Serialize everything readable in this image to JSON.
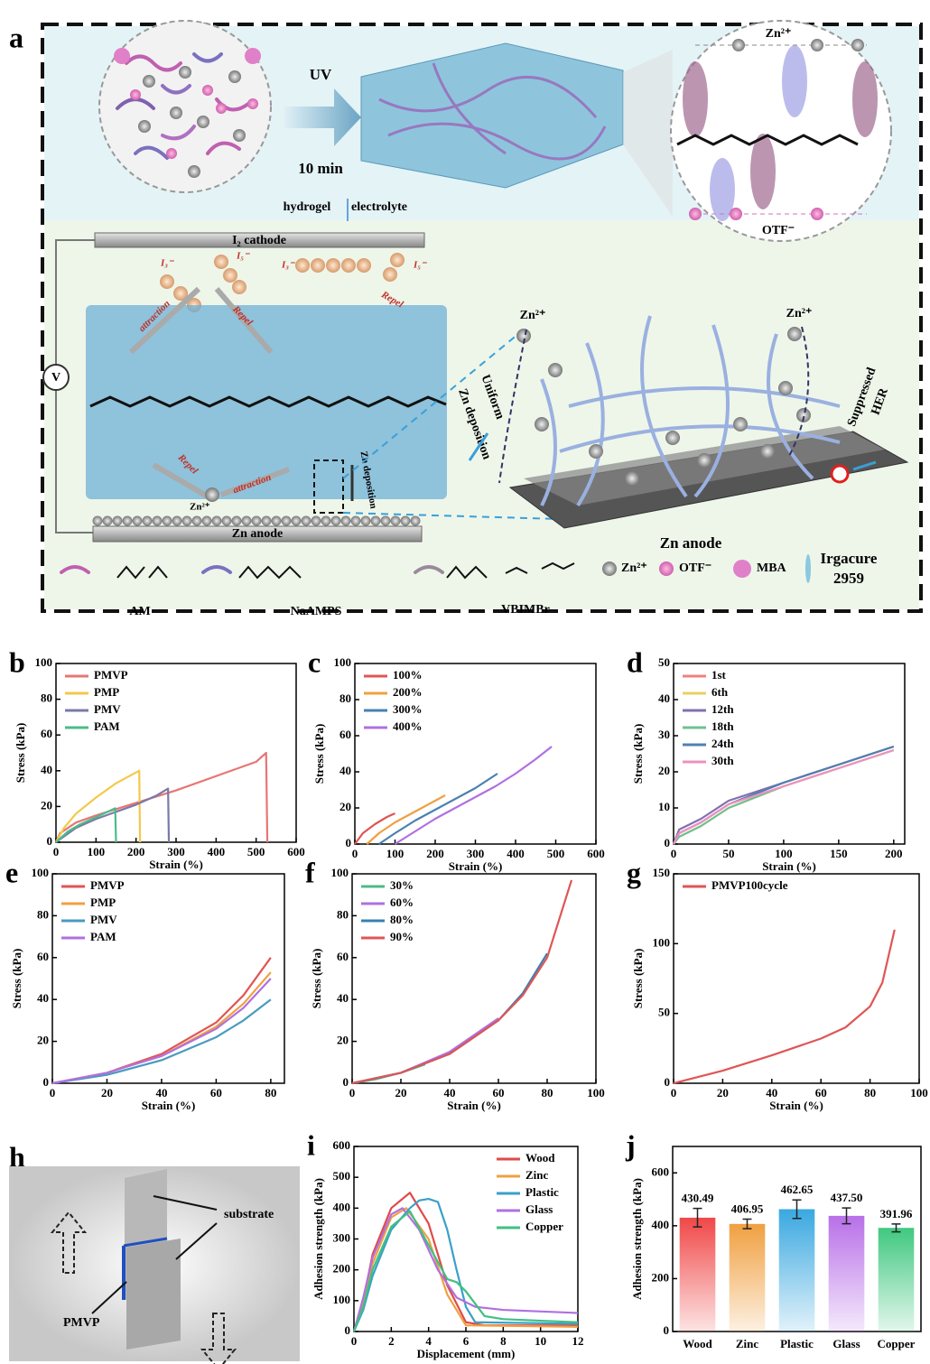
{
  "panel_a": {
    "label": "a",
    "uv": "UV",
    "time": "10 min",
    "hydrogel": "hydrogel",
    "electrolyte": "electrolyte",
    "inset_zn": "Zn²⁺",
    "inset_otf": "OTF⁻",
    "cathode": "I₂ cathode",
    "i3_1": "I₃⁻",
    "i5_1": "I₅⁻",
    "i3_2": "I₃⁻",
    "i5_2": "I₅⁻",
    "attraction_1": "attraction",
    "attraction_2": "attraction",
    "repel_1": "Repel",
    "repel_2": "Repel",
    "repel_3": "Repel",
    "voltmeter": "V",
    "zn_ion_bottom": "Zn²⁺",
    "zn_deposition": "Zn deposition",
    "anode": "Zn anode",
    "zn_ion_left": "Zn²⁺",
    "zn_ion_right": "Zn²⁺",
    "uniform": "Uniform",
    "zn_dep_right": "Zn deposition",
    "suppressed": "Suppressed",
    "her": "HER",
    "anode_right": "Zn anode",
    "legend": [
      "AM",
      "NaAMPS",
      "VBIMBr",
      "Zn²⁺",
      "OTF⁻",
      "MBA",
      "Irgacure",
      "2959"
    ]
  },
  "panel_h": {
    "label": "h",
    "substrate": "substrate",
    "pmvp": "PMVP"
  },
  "chart_data": [
    {
      "type": "line",
      "label": "b",
      "xlabel": "Strain (%)",
      "ylabel": "Stress (kPa)",
      "xlim": [
        0,
        600
      ],
      "ylim": [
        0,
        100
      ],
      "xticks": [
        0,
        100,
        200,
        300,
        400,
        500,
        600
      ],
      "yticks": [
        0,
        20,
        40,
        60,
        80,
        100
      ],
      "legend": "upper left",
      "series": [
        {
          "name": "PMVP",
          "color": "#e87575",
          "x": [
            0,
            10,
            50,
            100,
            200,
            300,
            400,
            500,
            525,
            528
          ],
          "values": [
            0,
            5,
            11,
            15,
            22,
            29,
            37,
            45,
            50,
            0
          ]
        },
        {
          "name": "PMP",
          "color": "#f5c84a",
          "x": [
            0,
            20,
            50,
            100,
            150,
            208,
            210
          ],
          "values": [
            0,
            8,
            16,
            25,
            33,
            40,
            0
          ]
        },
        {
          "name": "PMV",
          "color": "#7a7aa8",
          "x": [
            0,
            50,
            100,
            150,
            200,
            250,
            280,
            282
          ],
          "values": [
            0,
            8,
            13,
            17,
            21,
            26,
            30,
            0
          ]
        },
        {
          "name": "PAM",
          "color": "#4cbb8a",
          "x": [
            0,
            30,
            60,
            100,
            148,
            150
          ],
          "values": [
            0,
            6,
            10,
            14,
            19,
            0
          ]
        }
      ]
    },
    {
      "type": "line",
      "label": "c",
      "xlabel": "Strain (%)",
      "ylabel": "Stress (kPa)",
      "xlim": [
        0,
        600
      ],
      "ylim": [
        0,
        100
      ],
      "xticks": [
        0,
        100,
        200,
        300,
        400,
        500,
        600
      ],
      "yticks": [
        0,
        20,
        40,
        60,
        80,
        100
      ],
      "legend": "upper left",
      "series": [
        {
          "name": "100%",
          "color": "#e05555",
          "x": [
            0,
            20,
            50,
            80,
            100
          ],
          "values": [
            0,
            6,
            11,
            15,
            17
          ]
        },
        {
          "name": "200%",
          "color": "#f0a040",
          "x": [
            30,
            60,
            100,
            150,
            200,
            225
          ],
          "values": [
            0,
            6,
            12,
            18,
            24,
            27
          ]
        },
        {
          "name": "300%",
          "color": "#4a80b0",
          "x": [
            60,
            100,
            150,
            200,
            250,
            300,
            355
          ],
          "values": [
            0,
            6,
            13,
            19,
            25,
            31,
            39
          ]
        },
        {
          "name": "400%",
          "color": "#b070e0",
          "x": [
            100,
            150,
            200,
            250,
            300,
            350,
            400,
            450,
            490
          ],
          "values": [
            0,
            7,
            14,
            20,
            26,
            32,
            39,
            47,
            54
          ]
        }
      ]
    },
    {
      "type": "line",
      "label": "d",
      "xlabel": "Strain (%)",
      "ylabel": "Stress (kPa)",
      "xlim": [
        0,
        210
      ],
      "ylim": [
        0,
        50
      ],
      "xticks": [
        0,
        50,
        100,
        150,
        200
      ],
      "yticks": [
        0,
        10,
        20,
        30,
        40,
        50
      ],
      "legend": "upper left",
      "series": [
        {
          "name": "1st",
          "color": "#f08080",
          "x": [
            0,
            5,
            25,
            50,
            100,
            150,
            200
          ],
          "values": [
            0,
            3,
            6,
            11,
            17,
            22,
            27
          ]
        },
        {
          "name": "6th",
          "color": "#e8d060",
          "x": [
            0,
            5,
            25,
            50,
            100,
            150,
            200
          ],
          "values": [
            0,
            2,
            5,
            10,
            16,
            21,
            26
          ]
        },
        {
          "name": "12th",
          "color": "#8070b0",
          "x": [
            0,
            5,
            25,
            50,
            100,
            150,
            200
          ],
          "values": [
            0,
            4,
            7,
            12,
            17,
            22,
            27
          ]
        },
        {
          "name": "18th",
          "color": "#70c090",
          "x": [
            0,
            5,
            25,
            50,
            100,
            150,
            200
          ],
          "values": [
            0,
            2,
            5,
            10,
            16,
            21,
            26
          ]
        },
        {
          "name": "24th",
          "color": "#5080b0",
          "x": [
            0,
            5,
            25,
            50,
            100,
            150,
            200
          ],
          "values": [
            0,
            3,
            6,
            11,
            17,
            22,
            27
          ]
        },
        {
          "name": "30th",
          "color": "#f090c0",
          "x": [
            0,
            5,
            25,
            50,
            100,
            150,
            200
          ],
          "values": [
            0,
            3,
            6,
            11,
            16,
            21,
            26
          ]
        }
      ]
    },
    {
      "type": "line",
      "label": "e",
      "xlabel": "Strain (%)",
      "ylabel": "Stress (kPa)",
      "xlim": [
        0,
        85
      ],
      "ylim": [
        0,
        100
      ],
      "xticks": [
        0,
        20,
        40,
        60,
        80
      ],
      "yticks": [
        0,
        20,
        40,
        60,
        80,
        100
      ],
      "legend": "upper left",
      "series": [
        {
          "name": "PMVP",
          "color": "#e05555",
          "x": [
            0,
            20,
            40,
            60,
            70,
            80
          ],
          "values": [
            0,
            5,
            14,
            29,
            42,
            60
          ]
        },
        {
          "name": "PMP",
          "color": "#f0a040",
          "x": [
            0,
            20,
            40,
            60,
            70,
            80
          ],
          "values": [
            0,
            5,
            13,
            27,
            38,
            53
          ]
        },
        {
          "name": "PMV",
          "color": "#4a9ac0",
          "x": [
            0,
            20,
            40,
            60,
            70,
            80
          ],
          "values": [
            0,
            4,
            11,
            22,
            30,
            40
          ]
        },
        {
          "name": "PAM",
          "color": "#b070e0",
          "x": [
            0,
            20,
            40,
            60,
            70,
            80
          ],
          "values": [
            0,
            5,
            13,
            26,
            36,
            50
          ]
        }
      ]
    },
    {
      "type": "line",
      "label": "f",
      "xlabel": "Strain (%)",
      "ylabel": "Stress (kPa)",
      "xlim": [
        0,
        100
      ],
      "ylim": [
        0,
        100
      ],
      "xticks": [
        0,
        20,
        40,
        60,
        80,
        100
      ],
      "yticks": [
        0,
        20,
        40,
        60,
        80,
        100
      ],
      "legend": "upper left",
      "series": [
        {
          "name": "30%",
          "color": "#4cbb8a",
          "x": [
            0,
            10,
            20,
            30
          ],
          "values": [
            0,
            2,
            5,
            9
          ]
        },
        {
          "name": "60%",
          "color": "#b070e0",
          "x": [
            0,
            20,
            40,
            60
          ],
          "values": [
            0,
            5,
            15,
            31
          ]
        },
        {
          "name": "80%",
          "color": "#3a80b0",
          "x": [
            0,
            20,
            40,
            60,
            70,
            80
          ],
          "values": [
            0,
            5,
            14,
            30,
            43,
            62
          ]
        },
        {
          "name": "90%",
          "color": "#e05555",
          "x": [
            0,
            20,
            40,
            60,
            70,
            80,
            90
          ],
          "values": [
            0,
            5,
            14,
            30,
            42,
            60,
            97
          ]
        }
      ]
    },
    {
      "type": "line",
      "label": "g",
      "xlabel": "Strain (%)",
      "ylabel": "Stress (kPa)",
      "xlim": [
        0,
        100
      ],
      "ylim": [
        0,
        150
      ],
      "xticks": [
        0,
        20,
        40,
        60,
        80,
        100
      ],
      "yticks": [
        0,
        50,
        100,
        150
      ],
      "legend": "upper left",
      "series": [
        {
          "name": "PMVP100cycle",
          "color": "#e05555",
          "x": [
            0,
            20,
            40,
            60,
            70,
            80,
            85,
            90
          ],
          "values": [
            0,
            9,
            20,
            32,
            40,
            55,
            72,
            110
          ]
        }
      ]
    },
    {
      "type": "line",
      "label": "i",
      "xlabel": "Displacement (mm)",
      "ylabel": "Adhesion strength (kPa)",
      "xlim": [
        0,
        12
      ],
      "ylim": [
        0,
        600
      ],
      "xticks": [
        0,
        2,
        4,
        6,
        8,
        10,
        12
      ],
      "yticks": [
        0,
        100,
        200,
        300,
        400,
        500,
        600
      ],
      "legend": "upper right",
      "series": [
        {
          "name": "Wood",
          "color": "#e04a4a",
          "x": [
            0,
            0.5,
            1,
            2,
            3,
            4,
            5,
            6,
            7,
            12
          ],
          "values": [
            0,
            100,
            250,
            400,
            450,
            350,
            150,
            30,
            20,
            20
          ]
        },
        {
          "name": "Zinc",
          "color": "#f0a040",
          "x": [
            0,
            0.5,
            1,
            2,
            2.8,
            4,
            5,
            6,
            12
          ],
          "values": [
            0,
            90,
            220,
            370,
            400,
            300,
            120,
            20,
            15
          ]
        },
        {
          "name": "Plastic",
          "color": "#3aa0c8",
          "x": [
            0,
            0.5,
            1,
            2,
            3,
            3.5,
            4,
            4.5,
            5,
            5.5,
            6,
            6.5,
            12
          ],
          "values": [
            0,
            70,
            180,
            330,
            400,
            425,
            430,
            420,
            330,
            200,
            80,
            30,
            25
          ]
        },
        {
          "name": "Glass",
          "color": "#b070e0",
          "x": [
            0,
            0.5,
            1,
            2,
            2.6,
            3.5,
            4.5,
            5.5,
            6.5,
            8,
            12
          ],
          "values": [
            0,
            110,
            240,
            380,
            400,
            330,
            200,
            110,
            80,
            70,
            60
          ]
        },
        {
          "name": "Copper",
          "color": "#40c080",
          "x": [
            0,
            0.5,
            1,
            2,
            3,
            4,
            5,
            5.5,
            6,
            7,
            8,
            12
          ],
          "values": [
            0,
            80,
            200,
            340,
            390,
            280,
            170,
            160,
            130,
            50,
            40,
            30
          ]
        }
      ]
    },
    {
      "type": "bar",
      "label": "j",
      "ylabel": "Adhesion strength (kPa)",
      "categories": [
        "Wood",
        "Zinc",
        "Plastic",
        "Glass",
        "Copper"
      ],
      "values": [
        430.49,
        406.95,
        462.65,
        437.5,
        391.96
      ],
      "value_labels": [
        "430.49",
        "406.95",
        "462.65",
        "437.50",
        "391.96"
      ],
      "errors": [
        35,
        18,
        35,
        30,
        15
      ],
      "colors": [
        "#f04848",
        "#f0a040",
        "#3aa8e0",
        "#b870e8",
        "#40c880"
      ],
      "ylim": [
        0,
        700
      ],
      "yticks": [
        0,
        200,
        400,
        600
      ]
    }
  ]
}
